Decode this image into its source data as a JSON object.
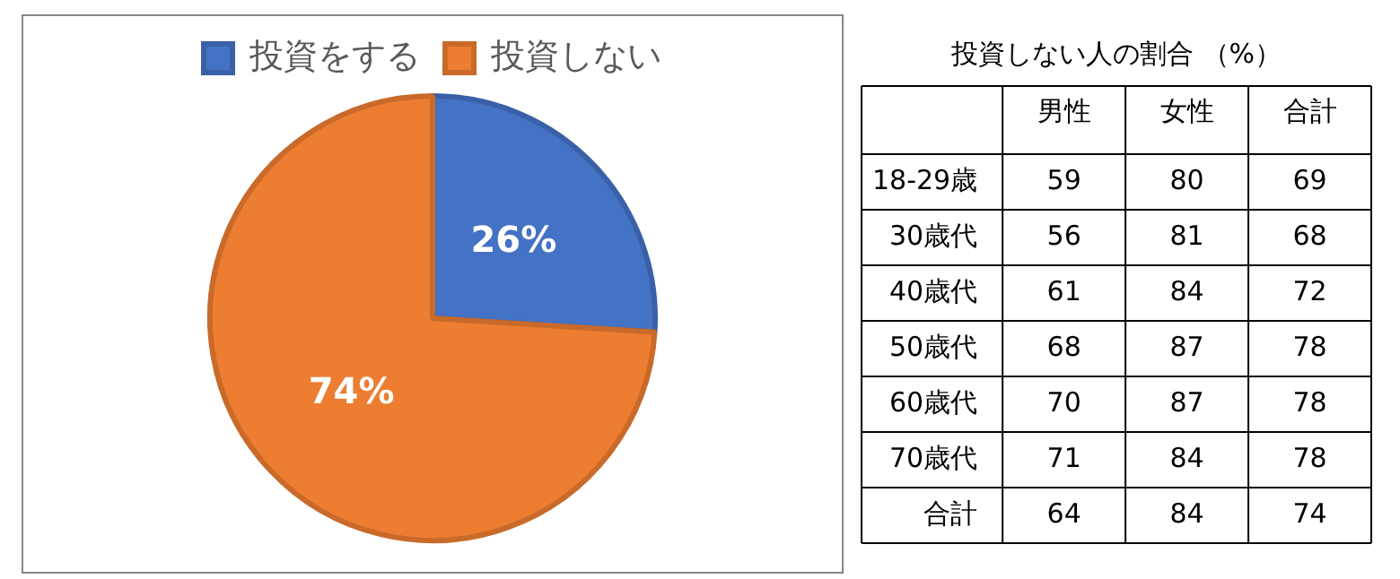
{
  "chart_data": [
    {
      "type": "pie",
      "categories": [
        "投資をする",
        "投資しない"
      ],
      "values": [
        26,
        74
      ],
      "colors": [
        "#4472c4",
        "#ed7d31"
      ],
      "value_labels": [
        "26%",
        "74%"
      ],
      "legend": "top"
    },
    {
      "type": "heatmap",
      "title": "投資しない人の割合 （%）",
      "categories": [
        "男性",
        "女性",
        "合計"
      ],
      "y_categories": [
        "18-29歳",
        "30歳代",
        "40歳代",
        "50歳代",
        "60歳代",
        "70歳代",
        "合計"
      ],
      "data_labels": true,
      "cells": [
        [
          59,
          80,
          69
        ],
        [
          56,
          81,
          68
        ],
        [
          61,
          84,
          72
        ],
        [
          68,
          87,
          78
        ],
        [
          70,
          87,
          78
        ],
        [
          71,
          84,
          78
        ],
        [
          64,
          84,
          74
        ]
      ]
    }
  ]
}
